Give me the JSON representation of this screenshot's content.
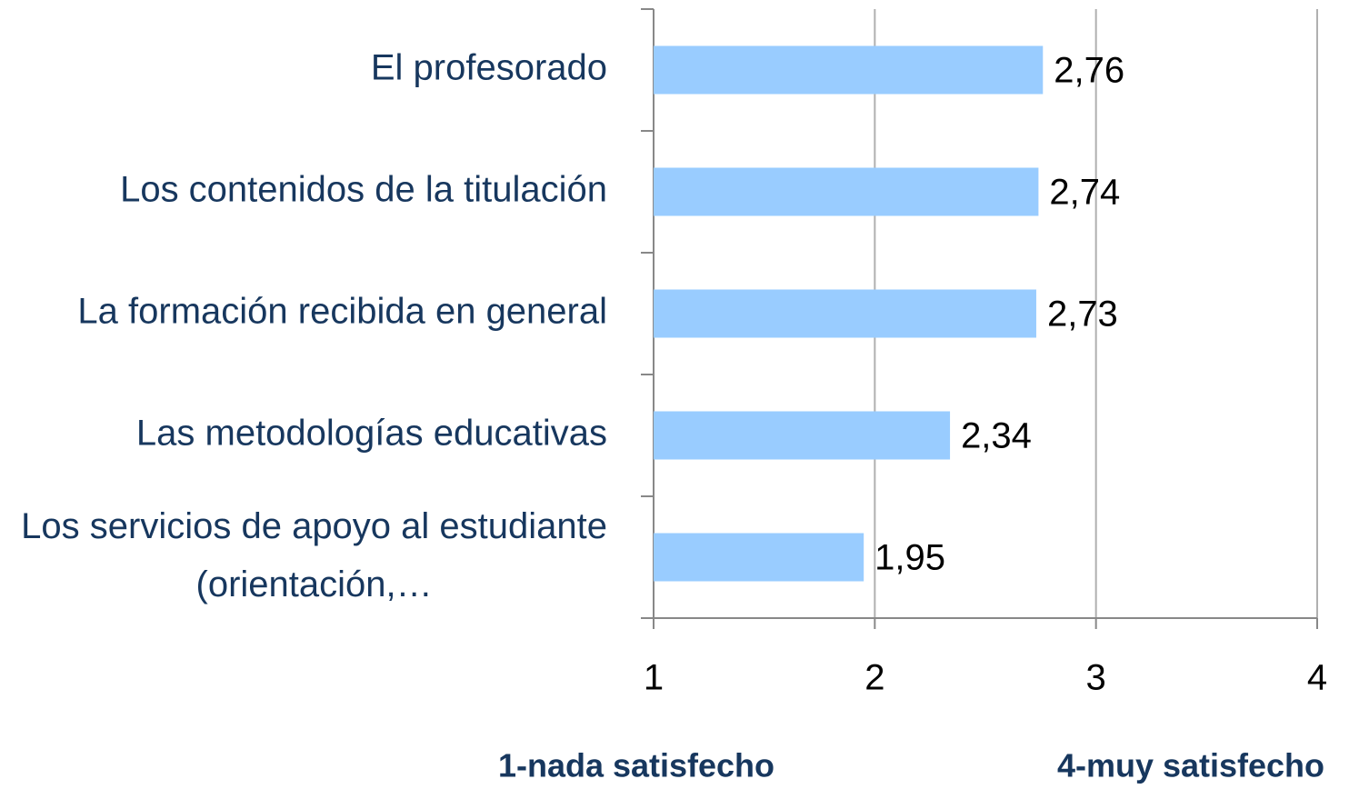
{
  "chart_data": {
    "type": "barh",
    "categories": [
      "El profesorado",
      "Los contenidos de la titulación",
      "La formación recibida en general",
      "Las metodologías educativas",
      "Los servicios de apoyo al estudiante (orientación,…"
    ],
    "values": [
      2.76,
      2.74,
      2.73,
      2.34,
      1.95
    ],
    "value_labels": [
      "2,76",
      "2,74",
      "2,73",
      "2,34",
      "1,95"
    ],
    "color": "#99ccff",
    "xlim": [
      1,
      4
    ],
    "xticks": [
      1,
      2,
      3,
      4
    ],
    "grid": true,
    "annotations": [
      "1-nada satisfecho",
      "4-muy satisfecho"
    ]
  }
}
